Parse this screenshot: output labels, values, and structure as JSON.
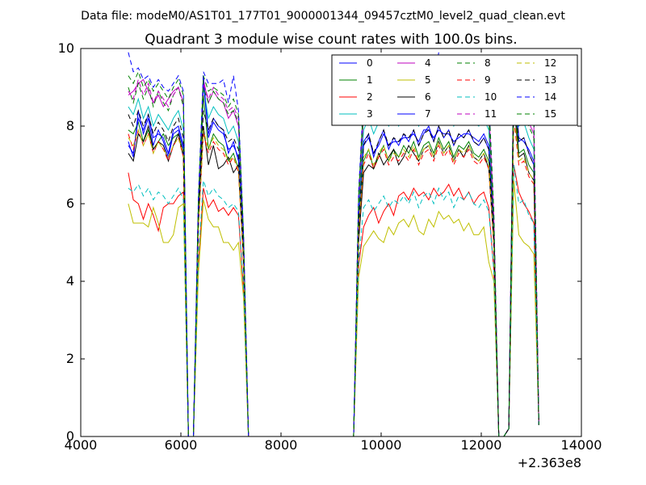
{
  "figure": {
    "suptitle": "Data file: modeM0/AS1T01_177T01_9000001344_09457cztM0_level2_quad_clean.evt"
  },
  "chart_data": {
    "type": "line",
    "title": "Quadrant 3 module wise count rates with 100.0s bins.",
    "xlabel": "",
    "ylabel": "",
    "x_offset_label": "+2.363e8",
    "xlim": [
      4000,
      14000
    ],
    "ylim": [
      0,
      10
    ],
    "x_ticks": [
      4000,
      6000,
      8000,
      10000,
      12000,
      14000
    ],
    "y_ticks": [
      0,
      2,
      4,
      6,
      8,
      10
    ],
    "grid": false,
    "legend_position": "top-right",
    "legend_columns": 4,
    "x": [
      4950,
      5050,
      5150,
      5250,
      5350,
      5450,
      5550,
      5650,
      5750,
      5850,
      5950,
      6050,
      6150,
      6250,
      6350,
      6450,
      6550,
      6650,
      6750,
      6850,
      6950,
      7050,
      7150,
      7250,
      7350,
      7450,
      8000,
      9000,
      9450,
      9550,
      9650,
      9750,
      9850,
      9950,
      10050,
      10150,
      10250,
      10350,
      10450,
      10550,
      10650,
      10750,
      10850,
      10950,
      11050,
      11150,
      11250,
      11350,
      11450,
      11550,
      11650,
      11750,
      11850,
      11950,
      12050,
      12150,
      12250,
      12350,
      12450,
      12550,
      12650,
      12750,
      12850,
      12950,
      13050,
      13150
    ],
    "series": [
      {
        "name": "0",
        "color": "#0000ff",
        "dash": "solid",
        "values": [
          7.6,
          7.2,
          8.4,
          7.8,
          8.2,
          7.5,
          7.9,
          7.6,
          7.2,
          7.8,
          7.9,
          7.4,
          0,
          0,
          5.6,
          9.3,
          7.8,
          8.2,
          8.0,
          7.9,
          7.3,
          7.6,
          7.1,
          4.8,
          0,
          0,
          0,
          0,
          0,
          5.5,
          7.6,
          7.8,
          7.2,
          7.6,
          7.9,
          7.4,
          7.7,
          7.5,
          7.8,
          7.6,
          7.9,
          7.5,
          7.8,
          8.0,
          7.6,
          8.0,
          7.7,
          7.9,
          7.5,
          7.8,
          7.7,
          7.9,
          7.6,
          7.5,
          7.7,
          7.4,
          5.2,
          0,
          0,
          0.2,
          9.4,
          7.6,
          7.7,
          7.3,
          7.0,
          0.3
        ]
      },
      {
        "name": "1",
        "color": "#008000",
        "dash": "solid",
        "values": [
          7.9,
          7.8,
          8.1,
          7.6,
          7.9,
          7.4,
          7.6,
          7.8,
          7.5,
          7.7,
          7.8,
          7.3,
          0,
          0,
          5.4,
          8.8,
          7.4,
          7.8,
          7.6,
          7.5,
          7.1,
          7.3,
          6.9,
          4.6,
          0,
          0,
          0,
          0,
          0,
          5.3,
          7.1,
          7.4,
          6.9,
          7.2,
          7.5,
          7.1,
          7.4,
          7.2,
          7.5,
          7.3,
          7.6,
          7.2,
          7.5,
          7.6,
          7.3,
          7.7,
          7.4,
          7.6,
          7.2,
          7.5,
          7.4,
          7.6,
          7.3,
          7.2,
          7.4,
          7.1,
          5.0,
          0,
          0,
          0.2,
          9.0,
          7.3,
          7.4,
          7.0,
          6.8,
          0.3
        ]
      },
      {
        "name": "2",
        "color": "#ff0000",
        "dash": "solid",
        "values": [
          6.8,
          6.1,
          6.0,
          5.6,
          6.0,
          5.7,
          5.3,
          5.9,
          6.0,
          6.0,
          6.2,
          6.3,
          0,
          0,
          4.4,
          6.4,
          5.9,
          6.1,
          5.8,
          5.9,
          5.7,
          5.9,
          5.7,
          3.8,
          0,
          0,
          0,
          0,
          0,
          4.4,
          5.4,
          5.7,
          5.9,
          5.5,
          5.8,
          6.0,
          5.7,
          6.2,
          6.3,
          6.1,
          6.4,
          6.2,
          6.3,
          6.1,
          6.4,
          6.2,
          6.3,
          6.5,
          6.2,
          6.4,
          6.1,
          6.3,
          6.0,
          6.2,
          6.3,
          5.9,
          4.3,
          0,
          0,
          0.2,
          7.0,
          6.3,
          6.0,
          5.8,
          5.5,
          0.3
        ]
      },
      {
        "name": "3",
        "color": "#00bfbf",
        "dash": "solid",
        "values": [
          8.5,
          8.3,
          8.7,
          8.2,
          8.5,
          8.0,
          8.3,
          8.1,
          7.9,
          8.2,
          8.4,
          7.9,
          0,
          0,
          5.8,
          9.0,
          8.2,
          8.5,
          8.3,
          8.2,
          7.8,
          8.0,
          7.6,
          5.0,
          0,
          0,
          0,
          0,
          0,
          5.8,
          7.9,
          8.2,
          7.8,
          8.1,
          8.4,
          8.0,
          8.2,
          8.0,
          8.3,
          8.1,
          8.4,
          8.0,
          8.3,
          8.4,
          8.1,
          8.5,
          8.2,
          8.4,
          8.0,
          8.3,
          8.2,
          8.4,
          8.1,
          8.0,
          8.2,
          7.9,
          5.4,
          0,
          0,
          0.2,
          9.5,
          8.0,
          8.1,
          7.7,
          7.4,
          0.3
        ]
      },
      {
        "name": "4",
        "color": "#bf00bf",
        "dash": "solid",
        "values": [
          8.8,
          8.9,
          9.1,
          9.2,
          8.9,
          8.6,
          8.8,
          8.5,
          8.7,
          8.9,
          9.0,
          8.6,
          0,
          0,
          6.0,
          9.2,
          8.6,
          8.9,
          8.7,
          8.6,
          8.2,
          8.4,
          8.0,
          5.2,
          0,
          0,
          0,
          0,
          0,
          6.0,
          8.3,
          8.6,
          8.2,
          8.5,
          8.8,
          8.4,
          8.6,
          8.4,
          8.7,
          8.5,
          8.8,
          8.4,
          8.7,
          8.8,
          8.5,
          8.9,
          8.6,
          8.8,
          8.4,
          8.7,
          8.6,
          8.8,
          8.5,
          8.4,
          8.6,
          8.3,
          5.6,
          0,
          0,
          0.2,
          9.6,
          8.4,
          8.5,
          8.1,
          7.8,
          0.3
        ]
      },
      {
        "name": "5",
        "color": "#bfbf00",
        "dash": "solid",
        "values": [
          6.0,
          5.5,
          5.5,
          5.5,
          5.4,
          5.9,
          5.5,
          5.0,
          5.0,
          5.2,
          5.9,
          6.0,
          0,
          0,
          4.2,
          6.1,
          5.6,
          5.4,
          5.4,
          5.0,
          5.0,
          4.8,
          5.0,
          3.6,
          0,
          0,
          0,
          0,
          0,
          4.1,
          4.9,
          5.1,
          5.3,
          5.1,
          5.0,
          5.4,
          5.2,
          5.5,
          5.6,
          5.4,
          5.7,
          5.3,
          5.2,
          5.6,
          5.4,
          5.8,
          5.6,
          5.7,
          5.5,
          5.6,
          5.3,
          5.5,
          5.2,
          5.2,
          5.4,
          4.5,
          4.0,
          0,
          0,
          0.2,
          6.6,
          5.2,
          5.0,
          4.9,
          4.7,
          0.3
        ]
      },
      {
        "name": "6",
        "color": "#000000",
        "dash": "solid",
        "values": [
          7.3,
          7.1,
          7.8,
          7.6,
          8.0,
          7.4,
          7.6,
          7.5,
          7.1,
          7.5,
          7.8,
          7.2,
          0,
          0,
          5.5,
          8.0,
          7.0,
          7.5,
          6.9,
          7.0,
          7.2,
          6.8,
          7.0,
          4.5,
          0,
          0,
          0,
          0,
          0,
          5.0,
          6.8,
          7.0,
          6.9,
          7.3,
          7.0,
          7.2,
          7.4,
          7.0,
          7.2,
          7.5,
          7.3,
          7.1,
          7.4,
          7.5,
          7.2,
          7.6,
          7.3,
          7.5,
          7.1,
          7.4,
          7.2,
          7.5,
          7.2,
          7.1,
          7.3,
          6.9,
          5.0,
          0,
          0,
          0.2,
          8.6,
          7.2,
          7.3,
          6.8,
          6.6,
          0.3
        ]
      },
      {
        "name": "7",
        "color": "#0000ff",
        "dash": "solid",
        "values": [
          7.5,
          7.3,
          8.2,
          7.9,
          8.3,
          7.7,
          7.8,
          7.7,
          7.3,
          7.9,
          8.0,
          7.5,
          0,
          0,
          5.6,
          9.2,
          7.7,
          8.1,
          7.9,
          7.8,
          7.4,
          7.5,
          7.2,
          4.8,
          0,
          0,
          0,
          0,
          0,
          5.4,
          7.5,
          7.7,
          7.3,
          7.5,
          7.8,
          7.5,
          7.6,
          7.6,
          7.7,
          7.7,
          7.8,
          7.6,
          7.9,
          7.9,
          7.7,
          7.9,
          7.8,
          7.8,
          7.6,
          7.7,
          7.8,
          7.8,
          7.7,
          7.6,
          7.8,
          7.5,
          5.2,
          0,
          0,
          0.2,
          9.3,
          7.7,
          7.6,
          7.4,
          7.1,
          0.3
        ]
      },
      {
        "name": "8",
        "color": "#008000",
        "dash": "dashed",
        "values": [
          9.0,
          8.6,
          9.1,
          8.7,
          9.0,
          8.5,
          8.9,
          8.6,
          8.4,
          8.8,
          9.0,
          8.5,
          0,
          0,
          5.9,
          9.0,
          8.6,
          8.9,
          8.7,
          8.6,
          8.3,
          8.4,
          8.1,
          5.1,
          0,
          0,
          0,
          0,
          0,
          5.9,
          8.4,
          8.6,
          8.2,
          8.5,
          8.7,
          8.3,
          8.5,
          8.4,
          8.6,
          8.4,
          8.7,
          8.3,
          8.6,
          8.7,
          8.4,
          8.8,
          8.5,
          8.7,
          8.3,
          8.6,
          8.5,
          8.7,
          8.4,
          8.3,
          8.5,
          8.2,
          5.5,
          0,
          0,
          0.2,
          9.4,
          8.3,
          8.4,
          8.0,
          7.7,
          0.3
        ]
      },
      {
        "name": "9",
        "color": "#ff0000",
        "dash": "dashed",
        "values": [
          7.8,
          7.4,
          7.9,
          7.5,
          7.8,
          7.3,
          7.6,
          7.4,
          7.1,
          7.5,
          7.7,
          7.2,
          0,
          0,
          5.4,
          7.8,
          7.3,
          7.6,
          7.4,
          7.3,
          7.0,
          7.2,
          6.8,
          4.5,
          0,
          0,
          0,
          0,
          0,
          5.2,
          7.0,
          7.3,
          6.9,
          7.2,
          7.4,
          7.0,
          7.2,
          7.1,
          7.3,
          7.1,
          7.4,
          7.0,
          7.3,
          7.4,
          7.1,
          7.5,
          7.2,
          7.4,
          7.0,
          7.3,
          7.2,
          7.4,
          7.1,
          7.0,
          7.2,
          6.9,
          4.9,
          0,
          0,
          0.2,
          8.2,
          7.0,
          7.1,
          6.7,
          6.5,
          0.3
        ]
      },
      {
        "name": "10",
        "color": "#00bfbf",
        "dash": "dashed",
        "values": [
          6.4,
          6.3,
          6.5,
          6.2,
          6.4,
          6.1,
          6.3,
          6.2,
          6.0,
          6.2,
          6.4,
          6.1,
          0,
          0,
          4.6,
          6.6,
          6.2,
          6.4,
          6.2,
          6.1,
          5.9,
          6.0,
          5.8,
          3.9,
          0,
          0,
          0,
          0,
          0,
          4.5,
          5.9,
          6.1,
          5.8,
          6.0,
          6.2,
          5.9,
          6.1,
          6.0,
          6.2,
          6.0,
          6.3,
          5.9,
          6.2,
          6.3,
          6.0,
          6.4,
          6.1,
          6.3,
          5.9,
          6.2,
          6.1,
          6.3,
          6.0,
          5.9,
          6.1,
          5.8,
          4.3,
          0,
          0,
          0.2,
          7.0,
          6.0,
          6.1,
          5.7,
          5.5,
          0.3
        ]
      },
      {
        "name": "11",
        "color": "#bf00bf",
        "dash": "dashed",
        "values": [
          8.9,
          8.7,
          9.2,
          8.8,
          9.1,
          8.6,
          8.9,
          8.7,
          8.5,
          8.8,
          9.0,
          8.6,
          0,
          0,
          6.0,
          9.1,
          8.7,
          9.0,
          8.8,
          8.7,
          8.4,
          8.5,
          8.2,
          5.2,
          0,
          0,
          0,
          0,
          0,
          6.1,
          8.5,
          8.8,
          8.4,
          8.7,
          9.0,
          8.6,
          8.8,
          8.6,
          8.9,
          8.7,
          9.0,
          8.6,
          8.9,
          9.0,
          8.7,
          9.1,
          8.8,
          9.0,
          8.6,
          8.9,
          8.8,
          9.0,
          8.7,
          8.6,
          8.8,
          8.5,
          5.7,
          0,
          0,
          0.2,
          9.7,
          8.6,
          8.7,
          8.3,
          8.0,
          0.3
        ]
      },
      {
        "name": "12",
        "color": "#bfbf00",
        "dash": "dashed",
        "values": [
          7.7,
          7.5,
          7.9,
          7.5,
          7.8,
          7.3,
          7.6,
          7.4,
          7.2,
          7.5,
          7.7,
          7.3,
          0,
          0,
          5.4,
          7.9,
          7.4,
          7.7,
          7.5,
          7.4,
          7.1,
          7.2,
          6.9,
          4.6,
          0,
          0,
          0,
          0,
          0,
          5.3,
          7.2,
          7.4,
          7.0,
          7.3,
          7.5,
          7.1,
          7.3,
          7.2,
          7.4,
          7.2,
          7.5,
          7.1,
          7.4,
          7.5,
          7.2,
          7.6,
          7.3,
          7.5,
          7.1,
          7.4,
          7.3,
          7.5,
          7.2,
          7.1,
          7.3,
          7.0,
          5.0,
          0,
          0,
          0.2,
          8.4,
          7.1,
          7.2,
          6.8,
          6.6,
          0.3
        ]
      },
      {
        "name": "13",
        "color": "#000000",
        "dash": "dashed",
        "values": [
          8.3,
          8.0,
          8.4,
          8.0,
          8.3,
          7.8,
          8.1,
          7.9,
          7.6,
          8.0,
          8.2,
          7.7,
          0,
          0,
          5.6,
          8.4,
          7.9,
          8.2,
          8.0,
          7.9,
          7.6,
          7.7,
          7.4,
          4.8,
          0,
          0,
          0,
          0,
          0,
          5.5,
          7.5,
          7.8,
          7.3,
          7.6,
          7.9,
          7.5,
          7.7,
          7.6,
          7.8,
          7.7,
          7.9,
          7.5,
          7.8,
          7.9,
          7.6,
          8.0,
          7.7,
          7.9,
          7.5,
          7.8,
          7.7,
          7.9,
          7.6,
          7.5,
          7.7,
          7.4,
          5.2,
          0,
          0,
          0.2,
          9.1,
          7.6,
          7.7,
          7.3,
          7.0,
          0.3
        ]
      },
      {
        "name": "14",
        "color": "#0000ff",
        "dash": "dashed",
        "values": [
          9.9,
          9.4,
          9.5,
          9.2,
          9.3,
          9.0,
          9.2,
          9.0,
          8.9,
          9.1,
          9.3,
          8.9,
          0,
          0,
          6.2,
          9.4,
          9.1,
          9.1,
          9.1,
          9.2,
          8.6,
          9.3,
          8.4,
          5.3,
          0,
          0,
          0,
          0,
          0,
          6.3,
          8.8,
          9.1,
          8.7,
          9.0,
          9.2,
          8.8,
          9.1,
          8.9,
          9.2,
          9.0,
          9.3,
          8.9,
          9.2,
          9.3,
          9.0,
          9.9,
          9.1,
          9.3,
          8.9,
          9.2,
          9.1,
          9.3,
          9.0,
          8.9,
          9.1,
          8.8,
          5.8,
          0,
          0,
          0.2,
          9.8,
          8.9,
          9.0,
          8.6,
          8.3,
          0.3
        ]
      },
      {
        "name": "15",
        "color": "#008000",
        "dash": "dashed",
        "values": [
          9.3,
          9.1,
          9.4,
          9.0,
          9.2,
          8.9,
          9.1,
          8.9,
          8.7,
          9.0,
          9.2,
          8.8,
          0,
          0,
          6.1,
          9.3,
          8.9,
          9.0,
          8.9,
          8.8,
          8.5,
          8.7,
          8.3,
          5.3,
          0,
          0,
          0,
          0,
          0,
          6.2,
          8.7,
          9.0,
          8.6,
          8.9,
          9.1,
          8.7,
          8.9,
          8.8,
          9.1,
          8.9,
          9.2,
          8.8,
          9.1,
          9.2,
          8.9,
          9.3,
          9.0,
          9.2,
          8.8,
          9.1,
          9.0,
          9.2,
          8.9,
          8.8,
          9.0,
          8.7,
          5.8,
          0,
          0,
          0.2,
          9.7,
          8.8,
          8.9,
          8.5,
          8.2,
          0.3
        ]
      }
    ]
  }
}
